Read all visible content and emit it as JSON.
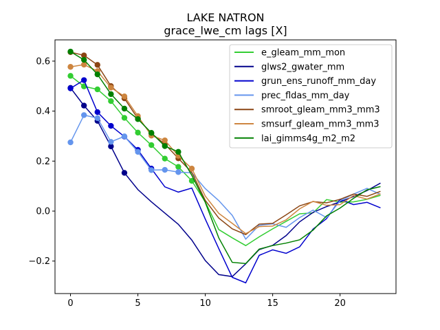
{
  "chart_data": {
    "type": "line",
    "title": "LAKE NATRON",
    "subtitle": "grace_lwe_cm lags [X]",
    "xlabel": "",
    "ylabel": "",
    "xlim": [
      -1.15,
      24.15
    ],
    "ylim": [
      -0.33,
      0.685
    ],
    "xticks": [
      0,
      5,
      10,
      15,
      20
    ],
    "yticks": [
      -0.2,
      0.0,
      0.2,
      0.4,
      0.6
    ],
    "ytick_labels": [
      "−0.2",
      "0.0",
      "0.2",
      "0.4",
      "0.6"
    ],
    "legend_position": "upper right",
    "grid": false,
    "series": [
      {
        "name": "e_gleam_mm_mon",
        "color": "#32cd32",
        "marker_count": 10,
        "values": [
          0.541,
          0.499,
          0.487,
          0.44,
          0.373,
          0.314,
          0.264,
          0.21,
          0.177,
          0.121,
          0.037,
          -0.074,
          -0.107,
          -0.138,
          -0.103,
          -0.071,
          -0.041,
          -0.011,
          -0.007,
          0.046,
          0.036,
          0.037,
          0.047,
          0.063
        ]
      },
      {
        "name": "glws2_gwater_mm",
        "color": "#00008b",
        "marker_count": 5,
        "values": [
          0.493,
          0.422,
          0.361,
          0.259,
          0.153,
          0.086,
          0.037,
          -0.008,
          -0.053,
          -0.116,
          -0.198,
          -0.254,
          -0.262,
          -0.211,
          -0.154,
          -0.137,
          -0.098,
          -0.043,
          -0.005,
          0.018,
          0.037,
          0.058,
          0.082,
          0.112
        ]
      },
      {
        "name": "grun_ens_runoff_mm_day",
        "color": "#0000cd",
        "marker_count": 7,
        "values": [
          0.491,
          0.524,
          0.396,
          0.341,
          0.298,
          0.245,
          0.17,
          0.097,
          0.076,
          0.092,
          -0.032,
          -0.15,
          -0.265,
          -0.287,
          -0.177,
          -0.155,
          -0.169,
          -0.143,
          -0.072,
          -0.03,
          0.047,
          0.026,
          0.035,
          0.013
        ]
      },
      {
        "name": "prec_fldas_mm_day",
        "color": "#6495ed",
        "marker_count": 9,
        "values": [
          0.275,
          0.384,
          0.372,
          0.277,
          0.299,
          0.237,
          0.164,
          0.165,
          0.156,
          0.153,
          0.09,
          0.042,
          -0.017,
          -0.112,
          -0.057,
          -0.051,
          -0.065,
          -0.026,
          0.004,
          -0.026,
          0.041,
          0.068,
          0.091,
          0.067
        ]
      },
      {
        "name": "smroot_gleam_mm3_mm3",
        "color": "#8b4513",
        "marker_count": 9,
        "values": [
          0.636,
          0.623,
          0.585,
          0.5,
          0.451,
          0.37,
          0.311,
          0.268,
          0.211,
          0.155,
          0.043,
          -0.028,
          -0.071,
          -0.094,
          -0.052,
          -0.049,
          -0.015,
          0.021,
          0.038,
          0.033,
          0.047,
          0.068,
          0.059,
          0.079
        ]
      },
      {
        "name": "smsurf_gleam_mm3_mm3",
        "color": "#cd853f",
        "marker_count": 10,
        "values": [
          0.577,
          0.586,
          0.56,
          0.494,
          0.459,
          0.38,
          0.302,
          0.283,
          0.221,
          0.17,
          0.06,
          -0.009,
          -0.049,
          -0.09,
          -0.062,
          -0.06,
          -0.035,
          0.009,
          0.039,
          0.023,
          0.026,
          0.062,
          0.048,
          0.069
        ]
      },
      {
        "name": "lai_gimms4g_m2_m2",
        "color": "#008000",
        "marker_count": 9,
        "values": [
          0.638,
          0.605,
          0.547,
          0.468,
          0.41,
          0.368,
          0.313,
          0.26,
          0.237,
          0.143,
          0.035,
          -0.107,
          -0.205,
          -0.21,
          -0.152,
          -0.138,
          -0.128,
          -0.115,
          -0.076,
          -0.019,
          0.012,
          0.051,
          0.085,
          0.098
        ]
      }
    ]
  }
}
